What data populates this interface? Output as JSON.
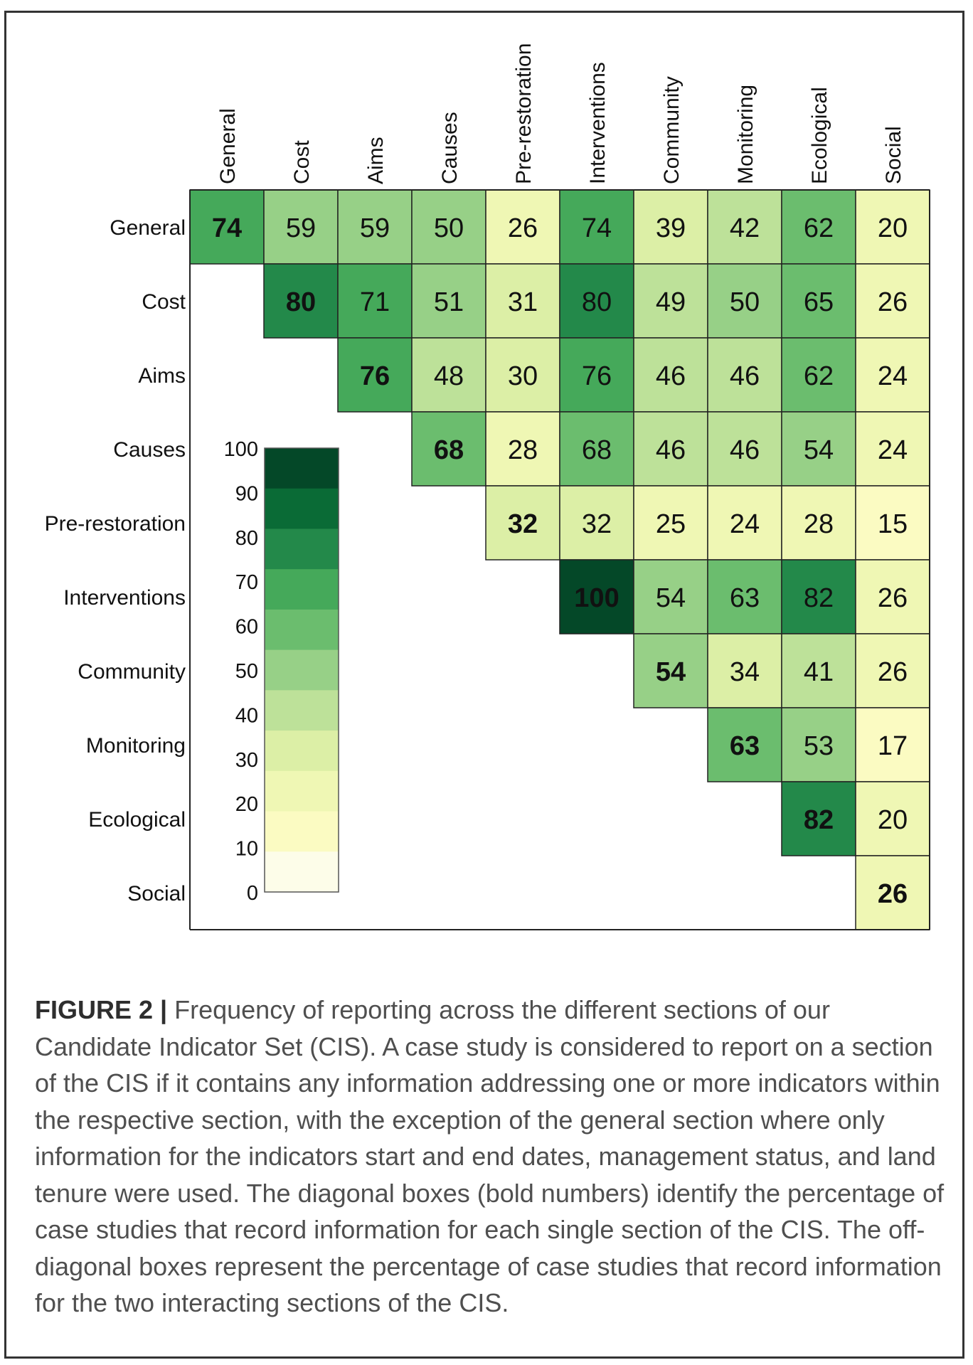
{
  "chart_data": {
    "type": "heatmap",
    "title": "",
    "categories": [
      "General",
      "Cost",
      "Aims",
      "Causes",
      "Pre-restoration",
      "Interventions",
      "Community",
      "Monitoring",
      "Ecological",
      "Social"
    ],
    "matrix": [
      [
        74,
        59,
        59,
        50,
        26,
        74,
        39,
        42,
        62,
        20
      ],
      [
        null,
        80,
        71,
        51,
        31,
        80,
        49,
        50,
        65,
        26
      ],
      [
        null,
        null,
        76,
        48,
        30,
        76,
        46,
        46,
        62,
        24
      ],
      [
        null,
        null,
        null,
        68,
        28,
        68,
        46,
        46,
        54,
        24
      ],
      [
        null,
        null,
        null,
        null,
        32,
        32,
        25,
        24,
        28,
        15
      ],
      [
        null,
        null,
        null,
        null,
        null,
        100,
        54,
        63,
        82,
        26
      ],
      [
        null,
        null,
        null,
        null,
        null,
        null,
        54,
        34,
        41,
        26
      ],
      [
        null,
        null,
        null,
        null,
        null,
        null,
        null,
        63,
        53,
        17
      ],
      [
        null,
        null,
        null,
        null,
        null,
        null,
        null,
        null,
        82,
        20
      ],
      [
        null,
        null,
        null,
        null,
        null,
        null,
        null,
        null,
        null,
        26
      ]
    ],
    "diagonal_bold": true,
    "colorbar": {
      "range": [
        0,
        100
      ],
      "ticks": [
        "100",
        "90",
        "80",
        "70",
        "60",
        "50",
        "40",
        "30",
        "20",
        "10",
        "0"
      ],
      "colors": [
        "#fdfde9",
        "#fbfbc2",
        "#eff7b4",
        "#dcefa6",
        "#bde199",
        "#97d087",
        "#6bbd6e",
        "#45a95a",
        "#23894a",
        "#0a6b36",
        "#044828"
      ]
    }
  },
  "caption": {
    "label": "FIGURE 2 |",
    "text": " Frequency of reporting across the different sections of our Candidate Indicator Set (CIS). A case study is considered to report on a section of the CIS if it contains any information addressing one or more indicators within the respective section, with the exception of the general section where only information for the indicators start and end dates, management status, and land tenure were used. The diagonal boxes (bold numbers) identify the percentage of case studies that record information for each single section of the CIS. The off-diagonal boxes represent the percentage of case studies that record information for the two interacting sections of the CIS."
  }
}
